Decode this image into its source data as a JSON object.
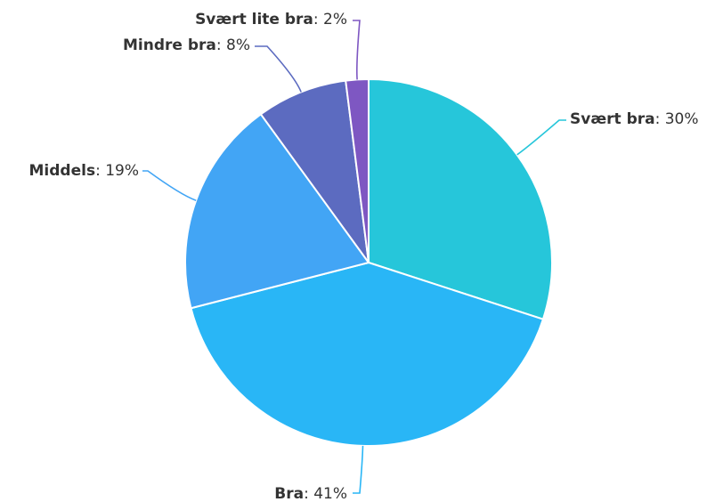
{
  "chart_data": {
    "type": "pie",
    "title": "",
    "categories": [
      "Svært bra",
      "Bra",
      "Middels",
      "Mindre bra",
      "Svært lite bra"
    ],
    "values": [
      30,
      41,
      19,
      8,
      2
    ],
    "value_labels": [
      "30%",
      "41%",
      "19%",
      "8%",
      "2%"
    ],
    "label_separator": ": ",
    "colors": [
      "#26C6DA",
      "#29B6F6",
      "#42A5F5",
      "#5C6BC0",
      "#7E57C2"
    ],
    "start_angle_deg": 0,
    "direction": "clockwise",
    "legend": "none",
    "data_labels": "outside-with-connectors"
  }
}
